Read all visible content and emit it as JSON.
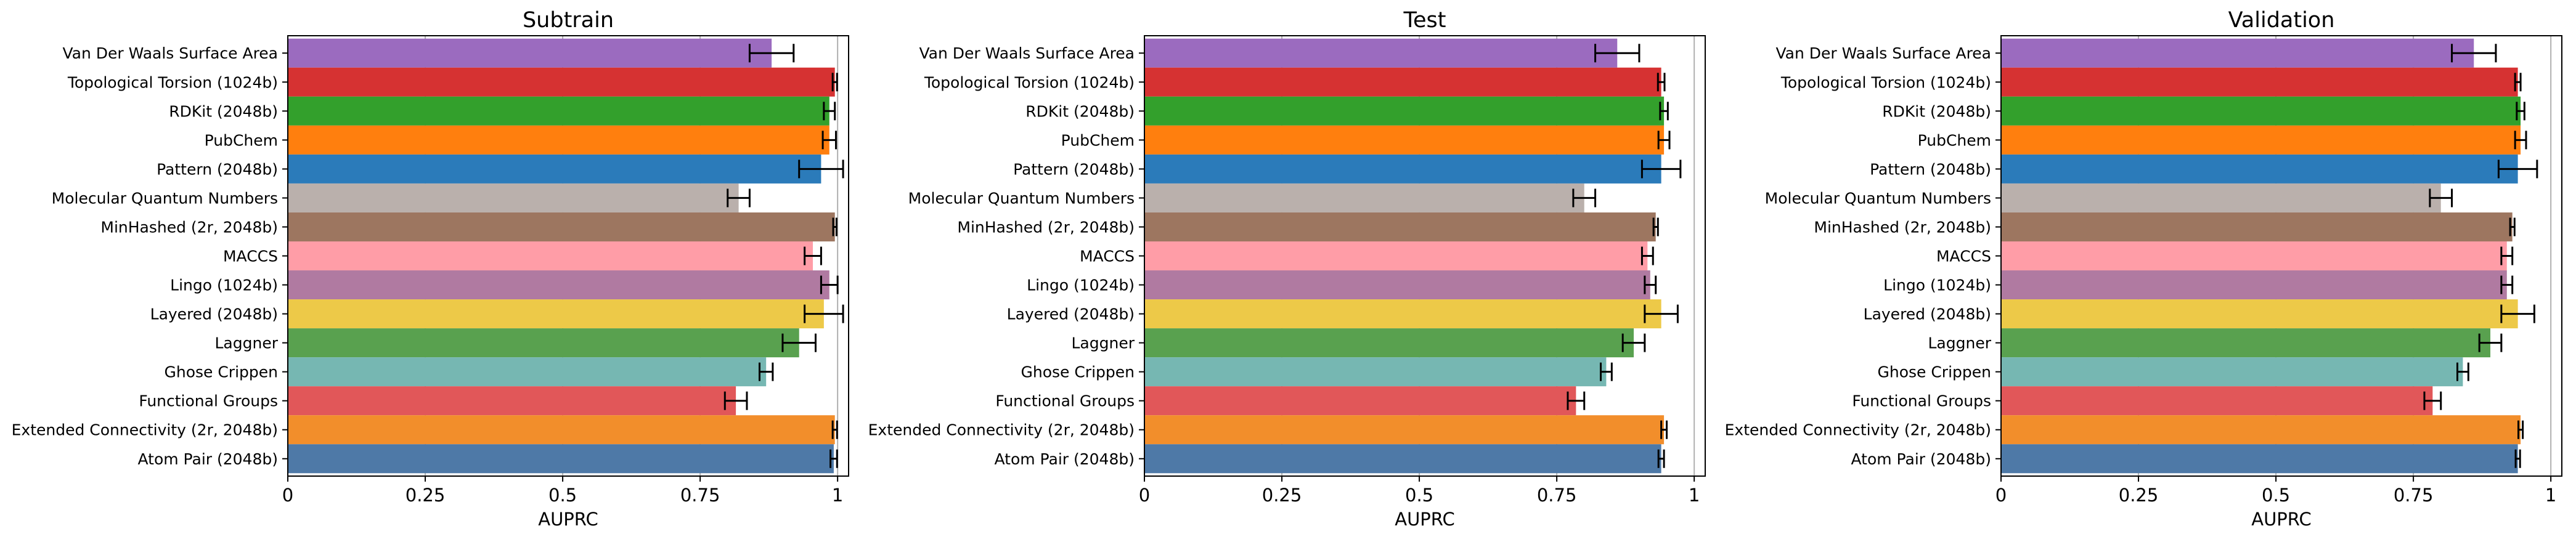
{
  "chart_data": [
    {
      "type": "bar",
      "orientation": "horizontal",
      "title": "Subtrain",
      "xlabel": "AUPRC",
      "ylabel": "",
      "xlim": [
        0,
        1.02
      ],
      "xticks": [
        "0",
        "0.25",
        "0.5",
        "0.75",
        "1"
      ],
      "grid": "vertical",
      "categories": [
        "Van Der Waals Surface Area",
        "Topological Torsion (1024b)",
        "RDKit (2048b)",
        "PubChem",
        "Pattern (2048b)",
        "Molecular Quantum Numbers",
        "MinHashed (2r, 2048b)",
        "MACCS",
        "Lingo (1024b)",
        "Layered (2048b)",
        "Laggner",
        "Ghose Crippen",
        "Functional Groups",
        "Extended Connectivity (2r, 2048b)",
        "Atom Pair (2048b)"
      ],
      "values": [
        0.88,
        0.995,
        0.985,
        0.985,
        0.97,
        0.82,
        0.995,
        0.955,
        0.985,
        0.975,
        0.93,
        0.87,
        0.815,
        0.995,
        0.993
      ],
      "errors": [
        0.04,
        0.004,
        0.01,
        0.012,
        0.04,
        0.02,
        0.003,
        0.015,
        0.015,
        0.035,
        0.03,
        0.012,
        0.02,
        0.004,
        0.006
      ]
    },
    {
      "type": "bar",
      "orientation": "horizontal",
      "title": "Test",
      "xlabel": "AUPRC",
      "ylabel": "",
      "xlim": [
        0,
        1.02
      ],
      "xticks": [
        "0",
        "0.25",
        "0.5",
        "0.75",
        "1"
      ],
      "grid": "vertical",
      "categories": [
        "Van Der Waals Surface Area",
        "Topological Torsion (1024b)",
        "RDKit (2048b)",
        "PubChem",
        "Pattern (2048b)",
        "Molecular Quantum Numbers",
        "MinHashed (2r, 2048b)",
        "MACCS",
        "Lingo (1024b)",
        "Layered (2048b)",
        "Laggner",
        "Ghose Crippen",
        "Functional Groups",
        "Extended Connectivity (2r, 2048b)",
        "Atom Pair (2048b)"
      ],
      "values": [
        0.86,
        0.94,
        0.945,
        0.945,
        0.94,
        0.8,
        0.93,
        0.915,
        0.92,
        0.94,
        0.89,
        0.84,
        0.785,
        0.945,
        0.94
      ],
      "errors": [
        0.04,
        0.006,
        0.007,
        0.01,
        0.035,
        0.02,
        0.004,
        0.01,
        0.01,
        0.03,
        0.02,
        0.01,
        0.015,
        0.005,
        0.005
      ]
    },
    {
      "type": "bar",
      "orientation": "horizontal",
      "title": "Validation",
      "xlabel": "AUPRC",
      "ylabel": "",
      "xlim": [
        0,
        1.02
      ],
      "xticks": [
        "0",
        "0.25",
        "0.5",
        "0.75",
        "1"
      ],
      "grid": "vertical",
      "categories": [
        "Van Der Waals Surface Area",
        "Topological Torsion (1024b)",
        "RDKit (2048b)",
        "PubChem",
        "Pattern (2048b)",
        "Molecular Quantum Numbers",
        "MinHashed (2r, 2048b)",
        "MACCS",
        "Lingo (1024b)",
        "Layered (2048b)",
        "Laggner",
        "Ghose Crippen",
        "Functional Groups",
        "Extended Connectivity (2r, 2048b)",
        "Atom Pair (2048b)"
      ],
      "values": [
        0.86,
        0.94,
        0.945,
        0.945,
        0.94,
        0.8,
        0.93,
        0.92,
        0.92,
        0.94,
        0.89,
        0.84,
        0.785,
        0.945,
        0.94
      ],
      "errors": [
        0.04,
        0.005,
        0.007,
        0.01,
        0.035,
        0.02,
        0.004,
        0.01,
        0.01,
        0.03,
        0.02,
        0.01,
        0.015,
        0.004,
        0.004
      ]
    }
  ],
  "colors": [
    "#9b6bbf",
    "#d63232",
    "#33a02c",
    "#ff7f0e",
    "#2b7bba",
    "#bab0ac",
    "#9d7660",
    "#ff9da7",
    "#b07aa1",
    "#edc948",
    "#59a14f",
    "#76b7b2",
    "#e15759",
    "#f28e2b",
    "#4e79a7"
  ]
}
